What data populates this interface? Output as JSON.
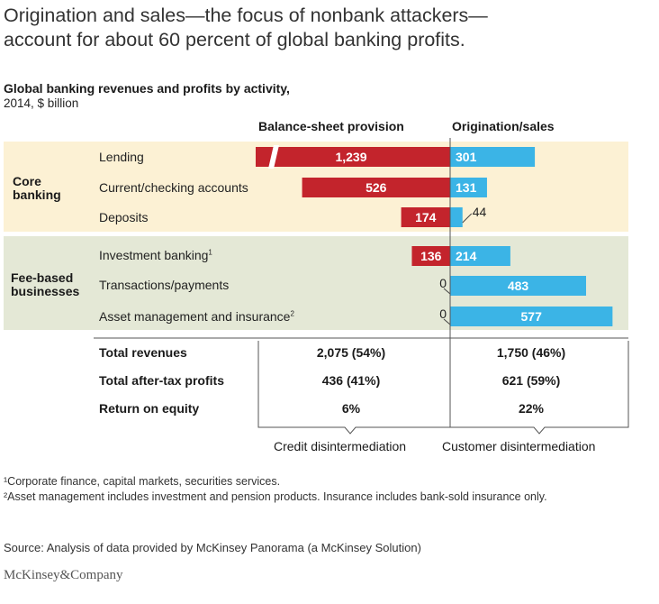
{
  "title_line1": "Origination and sales—the focus of nonbank attackers—",
  "title_line2": "account for about 60 percent of global banking profits.",
  "subtitle": "Global banking revenues and profits by activity,",
  "subline": "2014, $ billion",
  "colors": {
    "red": "#c3242c",
    "blue": "#3bb4e6",
    "core_band": "#fcf1d4",
    "fee_band": "#e4e8d6"
  },
  "chart_data": {
    "type": "bar",
    "title": "Global banking revenues and profits by activity, 2014, $ billion",
    "orientation": "horizontal-diverging",
    "groups": [
      {
        "name_line1": "Core",
        "name_line2": "banking",
        "categories": [
          "Lending",
          "Current/checking accounts",
          "Deposits"
        ]
      },
      {
        "name_line1": "Fee-based",
        "name_line2": "businesses",
        "categories": [
          "Investment banking",
          "Transactions/payments",
          "Asset management and insurance"
        ]
      }
    ],
    "categories": [
      "Lending",
      "Current/checking accounts",
      "Deposits",
      "Investment banking",
      "Transactions/payments",
      "Asset management and insurance"
    ],
    "footnote_markers": [
      "",
      "",
      "",
      "1",
      "",
      "2"
    ],
    "series": [
      {
        "name": "Balance-sheet provision",
        "values": [
          1239,
          526,
          174,
          136,
          0,
          0
        ],
        "labels": [
          "1,239",
          "526",
          "174",
          "136",
          "0",
          "0"
        ],
        "axis_break": [
          true,
          false,
          false,
          false,
          false,
          false
        ]
      },
      {
        "name": "Origination/sales",
        "values": [
          301,
          131,
          44,
          214,
          483,
          577
        ],
        "labels": [
          "301",
          "131",
          "44",
          "214",
          "483",
          "577"
        ]
      }
    ]
  },
  "totals": [
    {
      "label": "Total revenues",
      "left": "2,075 (54%)",
      "right": "1,750 (46%)"
    },
    {
      "label": "Total after-tax profits",
      "left": "436 (41%)",
      "right": "621 (59%)"
    },
    {
      "label": "Return on equity",
      "left": "6%",
      "right": "22%"
    }
  ],
  "bracket_left": "Credit disintermediation",
  "bracket_right": "Customer disintermediation",
  "footnote1": "¹Corporate finance, capital markets, securities services.",
  "footnote2": "²Asset management includes investment and pension products. Insurance includes bank-sold insurance only.",
  "source": "Source: Analysis of data provided by McKinsey Panorama (a McKinsey Solution)",
  "logo": "McKinsey&Company"
}
